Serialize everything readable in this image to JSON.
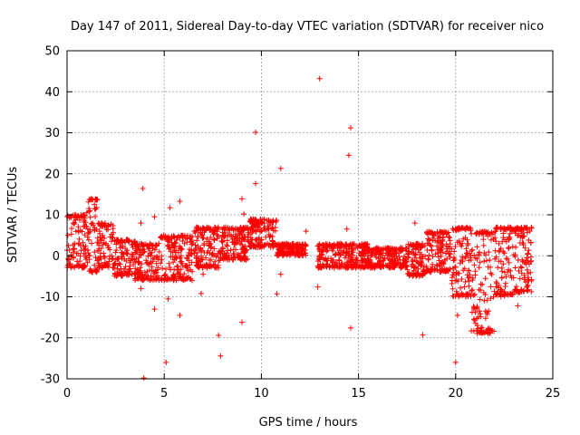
{
  "chart_data": {
    "type": "scatter",
    "title": "Day 147 of 2011, Sidereal Day-to-day VTEC variation (SDTVAR) for receiver nico",
    "xlabel": "GPS time / hours",
    "ylabel": "SDTVAR / TECUs",
    "xlim": [
      0,
      25
    ],
    "ylim": [
      -30,
      50
    ],
    "xticks": [
      "0",
      "5",
      "10",
      "15",
      "20",
      "25"
    ],
    "yticks": [
      "-30",
      "-20",
      "-10",
      "0",
      "10",
      "20",
      "30",
      "40",
      "50"
    ],
    "grid": true,
    "marker": "+",
    "color": "#ff0000",
    "series": [
      {
        "name": "nico",
        "bands": [
          {
            "x": [
              0.0,
              1.0
            ],
            "low": -3,
            "high": 10
          },
          {
            "x": [
              1.0,
              1.6
            ],
            "low": -4,
            "high": 14
          },
          {
            "x": [
              1.6,
              2.4
            ],
            "low": -3,
            "high": 8
          },
          {
            "x": [
              2.4,
              3.5
            ],
            "low": -5,
            "high": 4
          },
          {
            "x": [
              3.5,
              4.8
            ],
            "low": -6,
            "high": 3
          },
          {
            "x": [
              4.8,
              6.5
            ],
            "low": -6,
            "high": 5
          },
          {
            "x": [
              6.5,
              8.0
            ],
            "low": -3,
            "high": 7
          },
          {
            "x": [
              8.0,
              9.3
            ],
            "low": -1,
            "high": 7
          },
          {
            "x": [
              9.3,
              10.8
            ],
            "low": 2,
            "high": 9
          },
          {
            "x": [
              10.8,
              12.3
            ],
            "low": 0,
            "high": 3
          },
          {
            "x": [
              12.9,
              15.5
            ],
            "low": -3,
            "high": 3
          },
          {
            "x": [
              15.5,
              17.5
            ],
            "low": -3,
            "high": 2
          },
          {
            "x": [
              17.5,
              18.5
            ],
            "low": -5,
            "high": 3
          },
          {
            "x": [
              18.5,
              19.8
            ],
            "low": -4,
            "high": 6
          },
          {
            "x": [
              19.8,
              20.8
            ],
            "low": -10,
            "high": 7
          },
          {
            "x": [
              20.8,
              22.0
            ],
            "low": -19,
            "high": 6
          },
          {
            "x": [
              22.0,
              23.0
            ],
            "low": -10,
            "high": 7
          },
          {
            "x": [
              23.0,
              24.0
            ],
            "low": -9,
            "high": 7
          }
        ],
        "outliers": [
          [
            13.0,
            43.2
          ],
          [
            14.6,
            31.2
          ],
          [
            9.7,
            30.1
          ],
          [
            14.5,
            24.5
          ],
          [
            11.0,
            21.3
          ],
          [
            9.7,
            17.6
          ],
          [
            3.9,
            16.4
          ],
          [
            5.8,
            13.3
          ],
          [
            9.0,
            13.9
          ],
          [
            5.3,
            11.7
          ],
          [
            3.8,
            8.0
          ],
          [
            4.5,
            9.5
          ],
          [
            9.1,
            10.2
          ],
          [
            12.3,
            6.0
          ],
          [
            14.4,
            6.5
          ],
          [
            17.9,
            8.0
          ],
          [
            3.8,
            -8.0
          ],
          [
            4.5,
            -13.0
          ],
          [
            5.2,
            -10.5
          ],
          [
            5.8,
            -14.5
          ],
          [
            6.9,
            -9.2
          ],
          [
            10.8,
            -9.3
          ],
          [
            12.9,
            -7.6
          ],
          [
            9.0,
            -16.2
          ],
          [
            14.6,
            -17.6
          ],
          [
            7.8,
            -19.4
          ],
          [
            18.3,
            -19.3
          ],
          [
            7.9,
            -24.4
          ],
          [
            5.1,
            -26.0
          ],
          [
            20.0,
            -26.0
          ],
          [
            20.1,
            -14.5
          ],
          [
            23.2,
            -12.2
          ],
          [
            3.95,
            -29.8
          ],
          [
            7.0,
            -4.5
          ],
          [
            11.0,
            -4.5
          ]
        ]
      }
    ]
  }
}
